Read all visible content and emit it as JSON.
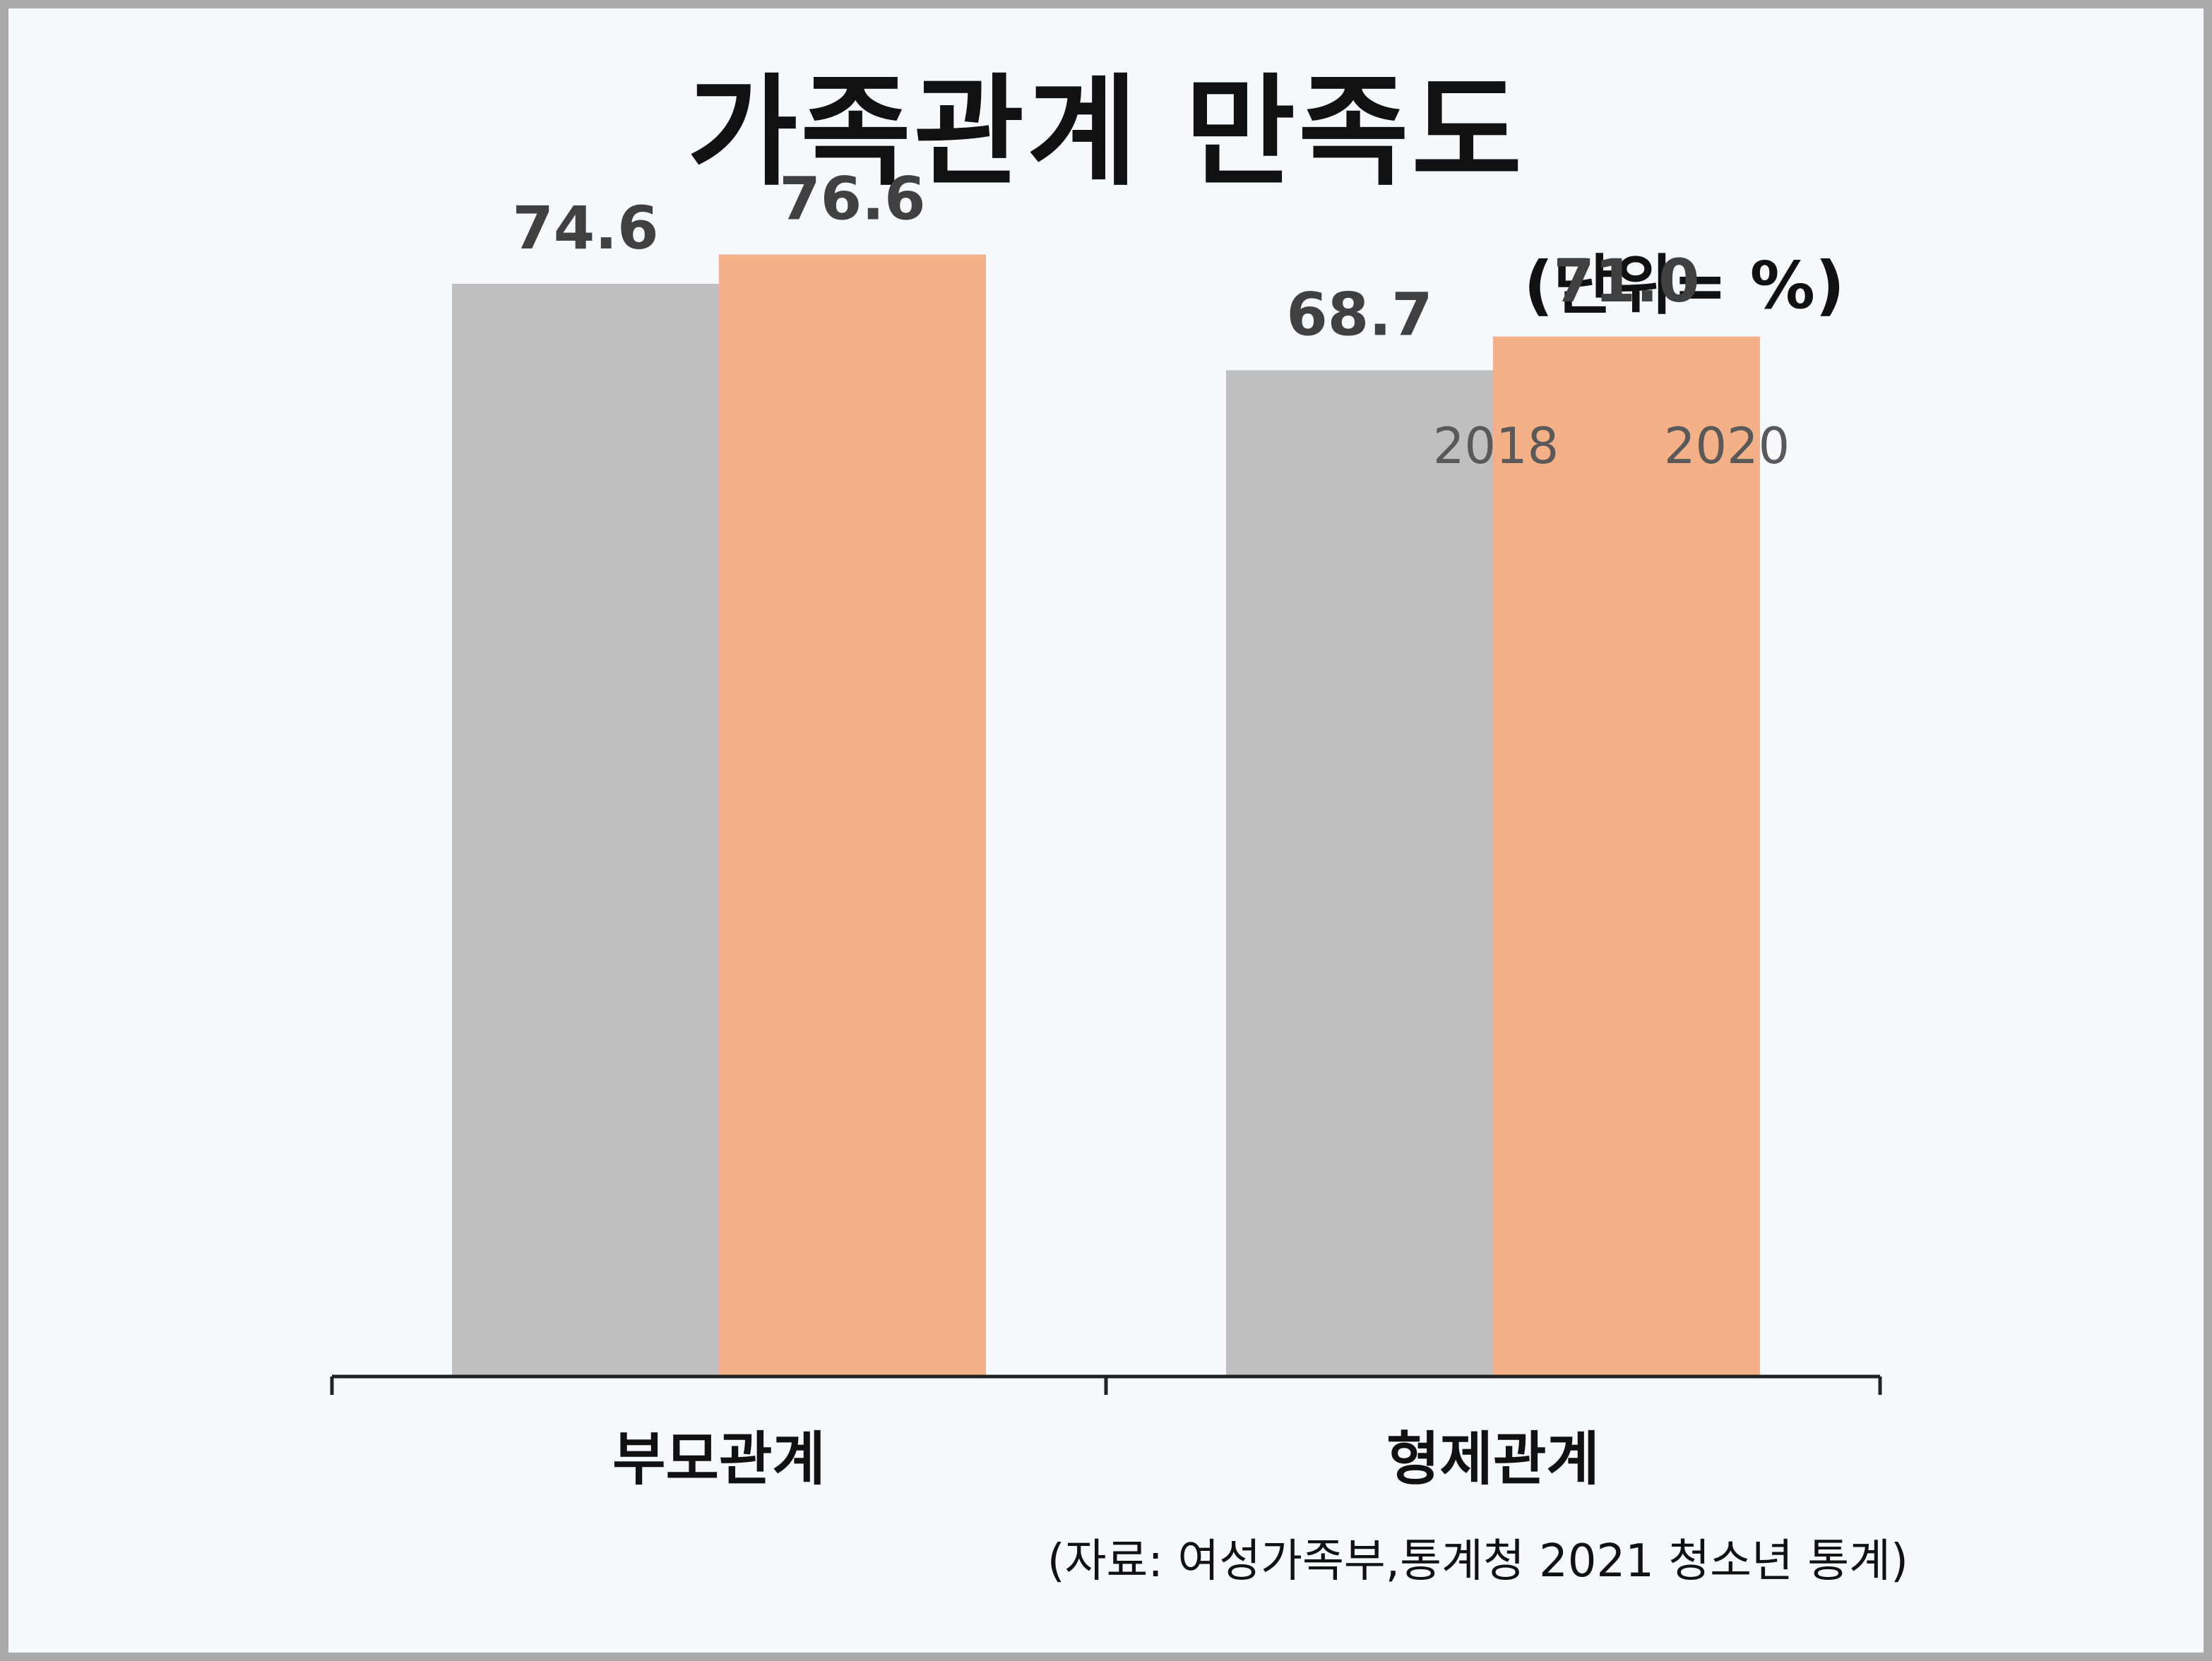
{
  "colors": {
    "background": "#f7f8fc",
    "border": "#aaaaaa",
    "series_2018": "#bfbfbf",
    "series_2020": "#f4b187",
    "axis": "#222222",
    "label_text": "#404040"
  },
  "chart_data": {
    "type": "bar",
    "title": "가족관계 만족도",
    "unit_note": "(단위= %)",
    "source": "(자료: 여성가족부,통계청 2021 청소년 통계)",
    "categories": [
      "부모관계",
      "형제관계"
    ],
    "series": [
      {
        "name": "2018",
        "values": [
          74.6,
          68.7
        ],
        "labels": [
          "74.6",
          "68.7"
        ],
        "color": "#bfbfbf"
      },
      {
        "name": "2020",
        "values": [
          76.6,
          71.0
        ],
        "labels": [
          "76.6",
          "71.0"
        ],
        "color": "#f4b187"
      }
    ],
    "ylim": [
      0,
      80
    ],
    "grid": false,
    "legend_position": "top-right",
    "xlabel": "",
    "ylabel": ""
  }
}
